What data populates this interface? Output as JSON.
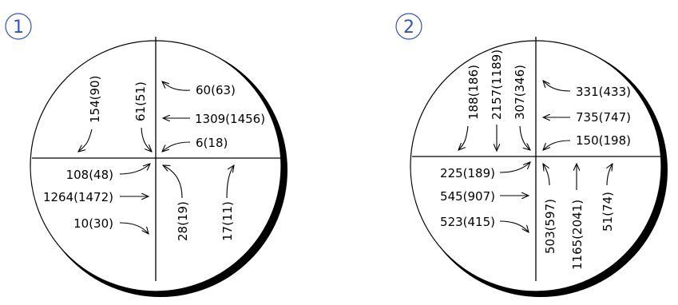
{
  "intersections": [
    {
      "badge": "1",
      "north_approach": {
        "right": "154(90)",
        "through": "",
        "left": "61(51)"
      },
      "east_approach": {
        "right": "60(63)",
        "through": "1309(1456)",
        "left": "6(18)"
      },
      "west_approach": {
        "left": "108(48)",
        "through": "1264(1472)",
        "right": "10(30)"
      },
      "south_approach": {
        "left": "28(19)",
        "through": "",
        "right": "17(11)"
      }
    },
    {
      "badge": "2",
      "north_approach": {
        "right": "188(186)",
        "through": "2157(1189)",
        "left": "307(346)"
      },
      "east_approach": {
        "right": "331(433)",
        "through": "735(747)",
        "left": "150(198)"
      },
      "west_approach": {
        "left": "225(189)",
        "through": "545(907)",
        "right": "523(415)"
      },
      "south_approach": {
        "left": "503(597)",
        "through": "1165(2041)",
        "right": "51(74)"
      }
    }
  ],
  "colors": {
    "badge": "#2f52c8",
    "lines": "#000000"
  }
}
